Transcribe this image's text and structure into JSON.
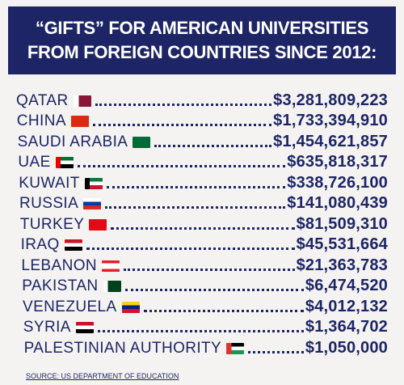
{
  "header": {
    "title_lines": [
      "“GIFTS” FOR AMERICAN UNIVERSITIES",
      "FROM FOREIGN COUNTRIES SINCE 2012:"
    ]
  },
  "rows": [
    {
      "country": "QATAR",
      "amount": "$3,281,809,223"
    },
    {
      "country": "CHINA",
      "amount": "$1,733,394,910"
    },
    {
      "country": "SAUDI ARABIA",
      "amount": "$1,454,621,857"
    },
    {
      "country": "UAE",
      "amount": "$635,818,317"
    },
    {
      "country": "KUWAIT",
      "amount": "$338,726,100"
    },
    {
      "country": "RUSSIA",
      "amount": "$141,080,439"
    },
    {
      "country": "TURKEY",
      "amount": "$81,509,310"
    },
    {
      "country": "IRAQ",
      "amount": "$45,531,664"
    },
    {
      "country": "LEBANON",
      "amount": "$21,363,783"
    },
    {
      "country": "PAKISTAN",
      "amount": "$6,474,520"
    },
    {
      "country": "VENEZUELA",
      "amount": "$4,012,132"
    },
    {
      "country": "SYRIA",
      "amount": "$1,364,702"
    },
    {
      "country": "PALESTINIAN AUTHORITY",
      "amount": "$1,050,000"
    }
  ],
  "source": "SOURCE: US DEPARTMENT OF EDUCATION"
}
